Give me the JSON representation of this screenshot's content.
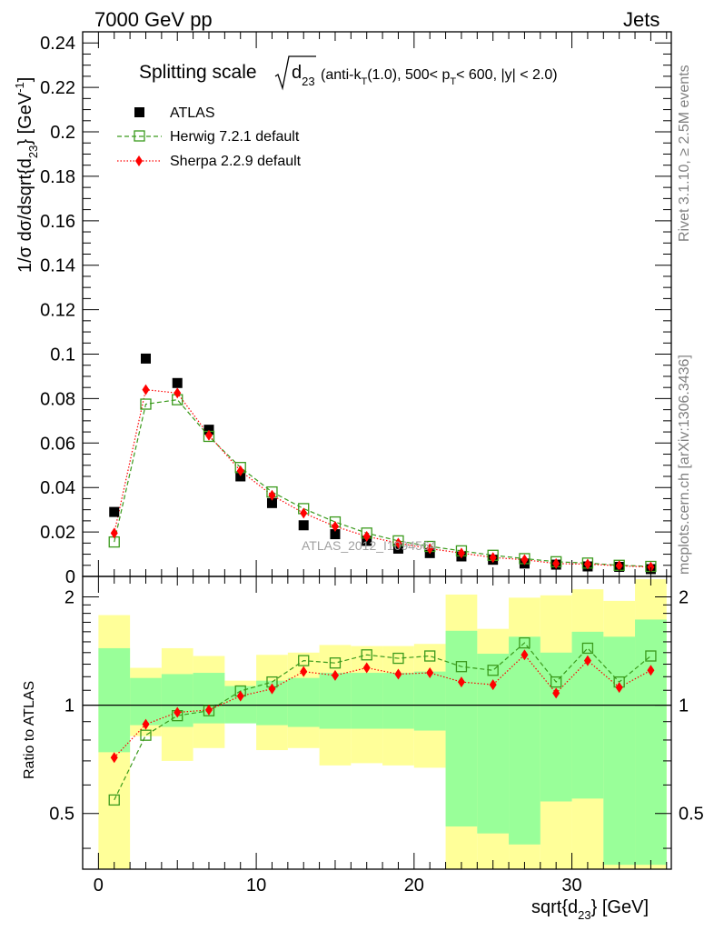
{
  "header": {
    "left": "7000 GeV pp",
    "right": "Jets"
  },
  "side_labels": {
    "top": "Rivet 3.1.10, ≥ 2.5M events",
    "bottom": "mcplots.cern.ch [arXiv:1306.3436]"
  },
  "watermark": "ATLAS_2012_I1094564",
  "colors": {
    "atlas": "#000000",
    "herwig": "#3a9a1c",
    "sherpa": "#ff0000",
    "band_inner": "#99ff99",
    "band_outer": "#ffff99"
  },
  "chart_data": [
    {
      "type": "scatter",
      "panel": "main",
      "title": {
        "prefix": "Splitting scale",
        "var": "d",
        "var_sub": "23",
        "open": "(anti-k",
        "k_sub": "T",
        "mid": "(1.0), 500< p",
        "p_sub": "T",
        "suffix": "< 600, |y| < 2.0)"
      },
      "ylabel": {
        "main": "1/σ dσ/dsqrt{d",
        "sub": "23",
        "close": "} [GeV",
        "sup": "-1",
        "end": "]"
      },
      "ylim": [
        0,
        0.245
      ],
      "yticks": [
        0,
        0.02,
        0.04,
        0.06,
        0.08,
        0.1,
        0.12,
        0.14,
        0.16,
        0.18,
        0.2,
        0.22,
        0.24
      ],
      "ytick_labels": [
        "0",
        "0.02",
        "0.04",
        "0.06",
        "0.08",
        "0.1",
        "0.12",
        "0.14",
        "0.16",
        "0.18",
        "0.2",
        "0.22",
        "0.24"
      ],
      "legend": [
        "ATLAS",
        "Herwig 7.2.1 default",
        "Sherpa 2.2.9 default"
      ],
      "legend_position": "top-left",
      "x": [
        1,
        3,
        5,
        7,
        9,
        11,
        13,
        15,
        17,
        19,
        21,
        23,
        25,
        27,
        29,
        31,
        33,
        35
      ],
      "series": [
        {
          "name": "ATLAS",
          "values": [
            0.029,
            0.098,
            0.087,
            0.066,
            0.045,
            0.033,
            0.023,
            0.019,
            0.016,
            0.0125,
            0.0105,
            0.009,
            0.0075,
            0.0058,
            0.0053,
            0.0045,
            0.0043,
            0.0033
          ]
        },
        {
          "name": "Herwig 7.2.1 default",
          "values": [
            0.0155,
            0.0775,
            0.0795,
            0.063,
            0.049,
            0.038,
            0.0305,
            0.0245,
            0.0195,
            0.016,
            0.0135,
            0.0115,
            0.0095,
            0.008,
            0.0066,
            0.006,
            0.005,
            0.0045
          ]
        },
        {
          "name": "Sherpa 2.2.9 default",
          "values": [
            0.0195,
            0.084,
            0.0825,
            0.0635,
            0.0475,
            0.0365,
            0.0285,
            0.0225,
            0.018,
            0.015,
            0.0125,
            0.0105,
            0.0085,
            0.0075,
            0.0058,
            0.0055,
            0.0048,
            0.0042
          ]
        }
      ]
    },
    {
      "type": "ratio",
      "panel": "ratio",
      "ylabel": "Ratio to ATLAS",
      "xlabel": {
        "main": "sqrt{d",
        "sub": "23",
        "end": "} [GeV]"
      },
      "xlim": [
        -1,
        36.3
      ],
      "xticks": [
        0,
        10,
        20,
        30
      ],
      "xtick_labels": [
        "0",
        "10",
        "20",
        "30"
      ],
      "ylim": [
        0.35,
        2.28
      ],
      "yticks": [
        0.5,
        1,
        2
      ],
      "ytick_labels": [
        "0.5",
        "1",
        "2"
      ],
      "bin_edges": [
        0,
        2,
        4,
        6,
        8,
        10,
        12,
        14,
        16,
        18,
        20,
        22,
        24,
        26,
        28,
        30,
        32,
        34,
        36
      ],
      "band_inner": [
        [
          0.74,
          1.44
        ],
        [
          0.88,
          1.19
        ],
        [
          0.87,
          1.22
        ],
        [
          0.89,
          1.23
        ],
        [
          0.89,
          1.13
        ],
        [
          0.88,
          1.17
        ],
        [
          0.87,
          1.19
        ],
        [
          0.86,
          1.23
        ],
        [
          0.86,
          1.23
        ],
        [
          0.86,
          1.23
        ],
        [
          0.85,
          1.24
        ],
        [
          0.46,
          1.61
        ],
        [
          0.44,
          1.39
        ],
        [
          0.41,
          1.55
        ],
        [
          0.54,
          1.4
        ],
        [
          0.55,
          1.6
        ],
        [
          0.36,
          1.55
        ],
        [
          0.36,
          1.73
        ]
      ],
      "band_outer": [
        [
          0.35,
          1.78
        ],
        [
          0.82,
          1.27
        ],
        [
          0.7,
          1.44
        ],
        [
          0.76,
          1.37
        ],
        [
          0.93,
          1.17
        ],
        [
          0.75,
          1.38
        ],
        [
          0.76,
          1.4
        ],
        [
          0.68,
          1.47
        ],
        [
          0.69,
          1.46
        ],
        [
          0.68,
          1.46
        ],
        [
          0.67,
          1.48
        ],
        [
          0.35,
          2.03
        ],
        [
          0.35,
          1.63
        ],
        [
          0.35,
          1.99
        ],
        [
          0.35,
          2.02
        ],
        [
          0.35,
          2.1
        ],
        [
          0.35,
          1.95
        ],
        [
          0.35,
          2.24
        ]
      ],
      "series": [
        {
          "name": "Herwig 7.2.1 default",
          "values": [
            0.545,
            0.825,
            0.935,
            0.965,
            1.095,
            1.16,
            1.33,
            1.31,
            1.38,
            1.35,
            1.37,
            1.28,
            1.25,
            1.49,
            1.16,
            1.44,
            1.16,
            1.37
          ]
        },
        {
          "name": "Sherpa 2.2.9 default",
          "values": [
            0.715,
            0.885,
            0.955,
            0.97,
            1.06,
            1.11,
            1.24,
            1.21,
            1.27,
            1.22,
            1.23,
            1.16,
            1.14,
            1.38,
            1.08,
            1.33,
            1.12,
            1.25
          ]
        }
      ]
    }
  ]
}
